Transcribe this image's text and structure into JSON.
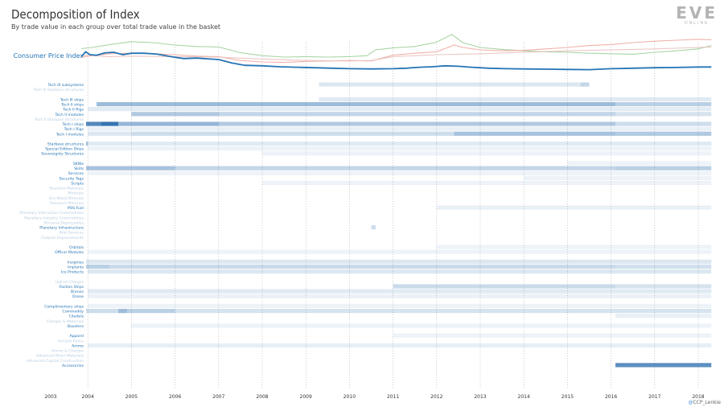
{
  "title": "Decomposition of Index",
  "subtitle": "By trade value in each group over total trade value in the basket",
  "logo": {
    "main": "EVE",
    "sub": "ONLINE"
  },
  "credit": {
    "at": "@",
    "name": "CCP_Lenkie"
  },
  "colors": {
    "cpi": "#2574b5",
    "green": "#9fd09a",
    "red": "#f0a8a0",
    "pink": "#e9c0bc",
    "label": "#2574b5",
    "label_faint": "#b7cde3",
    "grid": "#aaaaaa"
  },
  "chart_data": {
    "type": "heatmap",
    "title": "Decomposition of Index",
    "x_labels": [
      "2003",
      "2004",
      "2005",
      "2006",
      "2007",
      "2008",
      "2009",
      "2010",
      "2011",
      "2012",
      "2013",
      "2014",
      "2015",
      "2016",
      "2017",
      "2018"
    ],
    "line": {
      "name": "Consumer Price Index",
      "x": [
        2003.85,
        2003.95,
        2004.05,
        2004.2,
        2004.4,
        2004.6,
        2004.8,
        2005.0,
        2005.3,
        2005.6,
        2005.9,
        2006.2,
        2006.5,
        2006.8,
        2007.0,
        2007.3,
        2007.6,
        2008.0,
        2008.4,
        2008.8,
        2009.2,
        2009.6,
        2010.0,
        2010.5,
        2011.0,
        2011.3,
        2011.6,
        2011.9,
        2012.2,
        2012.5,
        2012.8,
        2013.2,
        2013.6,
        2014.0,
        2014.5,
        2015.0,
        2015.5,
        2016.0,
        2016.5,
        2017.0,
        2017.5,
        2018.0,
        2018.3
      ],
      "y": [
        0.72,
        0.92,
        0.8,
        0.78,
        0.88,
        0.9,
        0.8,
        0.86,
        0.86,
        0.82,
        0.72,
        0.64,
        0.66,
        0.62,
        0.6,
        0.46,
        0.36,
        0.34,
        0.3,
        0.28,
        0.26,
        0.24,
        0.22,
        0.21,
        0.22,
        0.24,
        0.28,
        0.3,
        0.34,
        0.32,
        0.28,
        0.24,
        0.22,
        0.21,
        0.2,
        0.19,
        0.18,
        0.22,
        0.24,
        0.26,
        0.27,
        0.29,
        0.29
      ]
    },
    "background_lines": [
      {
        "color": "green",
        "x": [
          2003.85,
          2004.1,
          2004.5,
          2005.0,
          2005.5,
          2006.0,
          2006.5,
          2007.0,
          2007.5,
          2008.0,
          2008.5,
          2009.0,
          2009.5,
          2010.0,
          2010.4,
          2010.6,
          2011.0,
          2011.5,
          2012.0,
          2012.35,
          2012.6,
          2013.0,
          2013.5,
          2014.0,
          2014.5,
          2015.0,
          2015.5,
          2016.0,
          2016.5,
          2017.0,
          2017.5,
          2018.0,
          2018.3
        ],
        "y": [
          1.05,
          1.1,
          1.22,
          1.34,
          1.3,
          1.2,
          1.14,
          1.12,
          0.88,
          0.76,
          0.7,
          0.72,
          0.7,
          0.72,
          0.76,
          1.0,
          1.08,
          1.14,
          1.32,
          1.64,
          1.3,
          1.1,
          1.02,
          0.96,
          0.92,
          0.9,
          0.86,
          0.84,
          0.82,
          0.9,
          0.96,
          1.04,
          1.18
        ]
      },
      {
        "color": "red",
        "x": [
          2003.85,
          2004.1,
          2004.5,
          2005.0,
          2005.5,
          2006.0,
          2006.5,
          2007.0,
          2007.5,
          2008.0,
          2008.5,
          2009.0,
          2009.5,
          2010.0,
          2010.5,
          2011.0,
          2011.5,
          2012.0,
          2012.4,
          2012.6,
          2013.0,
          2013.5,
          2014.0,
          2014.5,
          2015.0,
          2015.5,
          2016.0,
          2016.5,
          2017.0,
          2017.5,
          2018.0,
          2018.3
        ],
        "y": [
          0.7,
          0.76,
          0.84,
          0.86,
          0.84,
          0.8,
          0.74,
          0.72,
          0.56,
          0.5,
          0.48,
          0.52,
          0.54,
          0.56,
          0.54,
          0.78,
          0.86,
          0.92,
          1.2,
          1.1,
          1.0,
          0.96,
          0.98,
          1.04,
          1.1,
          1.18,
          1.22,
          1.3,
          1.36,
          1.4,
          1.44,
          1.42
        ]
      },
      {
        "color": "pink",
        "x": [
          2003.85,
          2004.5,
          2005.0,
          2006.0,
          2007.0,
          2008.0,
          2009.0,
          2010.0,
          2010.5,
          2011.0,
          2012.0,
          2013.0,
          2014.0,
          2015.0,
          2016.0,
          2017.0,
          2018.0,
          2018.3
        ],
        "y": [
          0.78,
          0.72,
          0.74,
          0.72,
          0.7,
          0.62,
          0.56,
          0.54,
          0.56,
          0.72,
          0.8,
          0.84,
          0.9,
          0.96,
          1.0,
          1.04,
          1.1,
          1.12
        ]
      }
    ],
    "rows": [
      {
        "label": "Tech III subsystems",
        "faint": false,
        "segs": [
          [
            2009.3,
            2015.3,
            0.12
          ],
          [
            2015.3,
            2015.5,
            0.25
          ]
        ]
      },
      {
        "label": "Tech III Starbase structures",
        "faint": true,
        "segs": []
      },
      {
        "label": "",
        "faint": true,
        "segs": []
      },
      {
        "label": "Tech III ships",
        "faint": false,
        "segs": [
          [
            2009.3,
            2018.3,
            0.1
          ]
        ]
      },
      {
        "label": "Tech II ships",
        "faint": false,
        "segs": [
          [
            2004.2,
            2016.1,
            0.45
          ],
          [
            2016.1,
            2018.3,
            0.3
          ]
        ]
      },
      {
        "label": "Tech II Rigs",
        "faint": false,
        "segs": [
          [
            2004.0,
            2018.3,
            0.08
          ]
        ]
      },
      {
        "label": "Tech II modules",
        "faint": false,
        "segs": [
          [
            2005.0,
            2007.0,
            0.35
          ],
          [
            2007.0,
            2016.1,
            0.25
          ],
          [
            2016.1,
            2018.3,
            0.15
          ]
        ]
      },
      {
        "label": "Tech II Starbase structures",
        "faint": true,
        "segs": []
      },
      {
        "label": "Tech I ships",
        "faint": false,
        "segs": [
          [
            2003.85,
            2004.3,
            0.85
          ],
          [
            2004.3,
            2004.7,
            1.0
          ],
          [
            2004.7,
            2007.0,
            0.5
          ],
          [
            2007.0,
            2016.1,
            0.35
          ],
          [
            2016.1,
            2018.3,
            0.2
          ]
        ]
      },
      {
        "label": "Tech I Rigs",
        "faint": false,
        "segs": [
          [
            2004.0,
            2018.3,
            0.05
          ]
        ]
      },
      {
        "label": "Tech I modules",
        "faint": false,
        "segs": [
          [
            2004.0,
            2005.0,
            0.12
          ],
          [
            2005.0,
            2012.4,
            0.2
          ],
          [
            2012.4,
            2016.1,
            0.4
          ],
          [
            2016.1,
            2018.3,
            0.35
          ]
        ]
      },
      {
        "label": "",
        "faint": true,
        "segs": []
      },
      {
        "label": "Starbase structures",
        "faint": false,
        "segs": [
          [
            2003.85,
            2004.0,
            0.4
          ],
          [
            2004.0,
            2018.3,
            0.1
          ]
        ]
      },
      {
        "label": "Special Edition Ships",
        "faint": false,
        "segs": [
          [
            2004.0,
            2018.3,
            0.03
          ]
        ]
      },
      {
        "label": "Sovereignty Structures",
        "faint": false,
        "segs": [
          [
            2008.0,
            2018.3,
            0.03
          ]
        ]
      },
      {
        "label": "",
        "faint": true,
        "segs": []
      },
      {
        "label": "SKINs",
        "faint": false,
        "segs": [
          [
            2015.0,
            2018.3,
            0.03
          ]
        ]
      },
      {
        "label": "Skills",
        "faint": false,
        "segs": [
          [
            2003.85,
            2006.0,
            0.4
          ],
          [
            2006.0,
            2016.1,
            0.25
          ],
          [
            2016.1,
            2018.3,
            0.3
          ]
        ]
      },
      {
        "label": "Services",
        "faint": false,
        "segs": [
          [
            2004.0,
            2018.3,
            0.03
          ]
        ]
      },
      {
        "label": "Security Tags",
        "faint": false,
        "segs": [
          [
            2014.0,
            2018.3,
            0.03
          ]
        ]
      },
      {
        "label": "Scripts",
        "faint": false,
        "segs": [
          [
            2008.0,
            2018.3,
            0.03
          ]
        ]
      },
      {
        "label": "Reaction Materials",
        "faint": true,
        "segs": []
      },
      {
        "label": "Minerals",
        "faint": true,
        "segs": []
      },
      {
        "label": "Ore Metal Minerals",
        "faint": true,
        "segs": []
      },
      {
        "label": "Research Minerals",
        "faint": true,
        "segs": []
      },
      {
        "label": "POS Fuel",
        "faint": false,
        "segs": [
          [
            2012.0,
            2018.3,
            0.05
          ]
        ]
      },
      {
        "label": "Planetary Interaction Commodities",
        "faint": true,
        "segs": []
      },
      {
        "label": "Planetary Industry Commodities",
        "faint": true,
        "segs": []
      },
      {
        "label": "Personal Deployables",
        "faint": true,
        "segs": []
      },
      {
        "label": "Planetary Infrastructure",
        "faint": false,
        "segs": [
          [
            2010.5,
            2010.6,
            0.2
          ]
        ]
      },
      {
        "label": "Pilot Services",
        "faint": true,
        "segs": []
      },
      {
        "label": "Outpost Improvements",
        "faint": true,
        "segs": []
      },
      {
        "label": "",
        "faint": true,
        "segs": []
      },
      {
        "label": "Orbitals",
        "faint": false,
        "segs": [
          [
            2012.0,
            2018.3,
            0.03
          ]
        ]
      },
      {
        "label": "Officer Modules",
        "faint": false,
        "segs": [
          [
            2004.0,
            2018.3,
            0.03
          ]
        ]
      },
      {
        "label": "",
        "faint": true,
        "segs": []
      },
      {
        "label": "Insignias",
        "faint": false,
        "segs": [
          [
            2003.85,
            2018.3,
            0.12
          ]
        ]
      },
      {
        "label": "Implants",
        "faint": false,
        "segs": [
          [
            2003.85,
            2004.5,
            0.3
          ],
          [
            2004.5,
            2016.1,
            0.22
          ],
          [
            2016.1,
            2018.3,
            0.18
          ]
        ]
      },
      {
        "label": "Ice Products",
        "faint": false,
        "segs": [
          [
            2004.0,
            2018.3,
            0.12
          ]
        ]
      },
      {
        "label": "",
        "faint": true,
        "segs": []
      },
      {
        "label": "Hybrid Charges",
        "faint": true,
        "segs": []
      },
      {
        "label": "Faction Ships",
        "faint": false,
        "segs": [
          [
            2011.0,
            2016.1,
            0.22
          ],
          [
            2016.1,
            2018.3,
            0.15
          ]
        ]
      },
      {
        "label": "Drones",
        "faint": false,
        "segs": [
          [
            2004.0,
            2018.3,
            0.1
          ]
        ]
      },
      {
        "label": "Drone",
        "faint": false,
        "segs": [
          [
            2004.0,
            2018.3,
            0.04
          ]
        ]
      },
      {
        "label": "",
        "faint": true,
        "segs": []
      },
      {
        "label": "Complimentary ships",
        "faint": false,
        "segs": [
          [
            2004.0,
            2018.3,
            0.03
          ]
        ]
      },
      {
        "label": "Commodity",
        "faint": false,
        "segs": [
          [
            2003.85,
            2004.7,
            0.2
          ],
          [
            2004.7,
            2004.9,
            0.45
          ],
          [
            2004.9,
            2006.0,
            0.3
          ],
          [
            2006.0,
            2018.3,
            0.15
          ]
        ]
      },
      {
        "label": "Citadels",
        "faint": false,
        "segs": [
          [
            2016.1,
            2018.3,
            0.05
          ]
        ]
      },
      {
        "label": "Charges & Materials",
        "faint": true,
        "segs": []
      },
      {
        "label": "Boosters",
        "faint": false,
        "segs": [
          [
            2005.0,
            2018.3,
            0.03
          ]
        ]
      },
      {
        "label": "",
        "faint": true,
        "segs": []
      },
      {
        "label": "Apparel",
        "faint": false,
        "segs": [
          [
            2011.0,
            2018.3,
            0.03
          ]
        ]
      },
      {
        "label": "Ancient Relics",
        "faint": true,
        "segs": []
      },
      {
        "label": "Ammo",
        "faint": false,
        "segs": [
          [
            2004.0,
            2018.3,
            0.06
          ]
        ]
      },
      {
        "label": "Ammo & Charges",
        "faint": true,
        "segs": []
      },
      {
        "label": "Advanced Moon Materials",
        "faint": true,
        "segs": []
      },
      {
        "label": "Advanced Capital Construction",
        "faint": true,
        "segs": []
      },
      {
        "label": "Accessories",
        "faint": false,
        "segs": [
          [
            2016.1,
            2018.3,
            0.8
          ]
        ]
      }
    ]
  }
}
